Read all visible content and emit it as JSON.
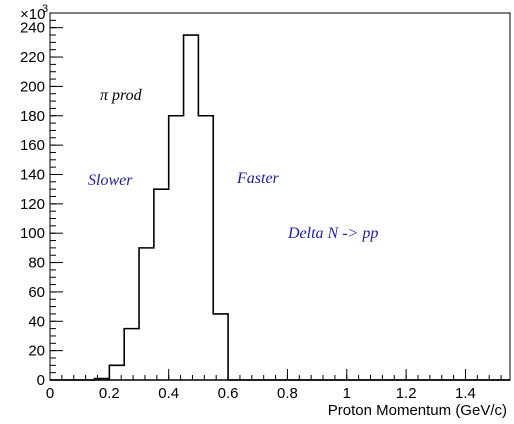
{
  "chart_data": {
    "type": "line",
    "title": "",
    "xlabel": "Proton Momentum (GeV/c)",
    "ylabel": "",
    "y_scale_label": "×10",
    "y_scale_exponent": "3",
    "xlim": [
      0,
      1.55
    ],
    "ylim": [
      0,
      250
    ],
    "x_ticks": [
      0,
      0.2,
      0.4,
      0.6,
      0.8,
      1,
      1.2,
      1.4
    ],
    "x_tick_labels": [
      "0",
      "0.2",
      "0.4",
      "0.6",
      "0.8",
      "1",
      "1.2",
      "1.4"
    ],
    "y_ticks": [
      0,
      20,
      40,
      60,
      80,
      100,
      120,
      140,
      160,
      180,
      200,
      220,
      240
    ],
    "y_tick_labels": [
      "0",
      "20",
      "40",
      "60",
      "80",
      "100",
      "120",
      "140",
      "160",
      "180",
      "200",
      "220",
      "240"
    ],
    "grid": false,
    "legend": "none",
    "series": [
      {
        "style": "solid-step",
        "color": "#000000",
        "bin_width": 0.05,
        "bin_start": 0,
        "values": [
          0,
          0,
          0,
          1,
          10,
          35,
          90,
          130,
          180,
          235,
          180,
          45,
          0,
          0,
          0,
          0,
          0,
          0,
          0,
          0,
          0,
          0,
          0,
          0,
          0,
          0,
          0,
          0,
          0,
          0,
          0
        ]
      },
      {
        "style": "solid-step",
        "color": "#000000",
        "bin_width": 0.05,
        "bin_start": 0,
        "values": [
          0,
          0,
          0,
          0,
          0,
          0,
          0,
          0,
          0,
          0,
          0,
          0,
          0,
          0,
          0,
          0,
          0,
          0,
          0,
          0,
          0,
          0,
          0,
          0,
          0,
          0,
          0,
          0,
          0,
          0,
          0
        ]
      }
    ],
    "annotations": [
      {
        "text": "π prod",
        "color": "#000000"
      },
      {
        "text": "Slower",
        "color": "#1e1ea8"
      },
      {
        "text": "Faster",
        "color": "#1e1ea8"
      },
      {
        "text": "Delta N -> pp",
        "color": "#1e1ea8"
      }
    ]
  }
}
